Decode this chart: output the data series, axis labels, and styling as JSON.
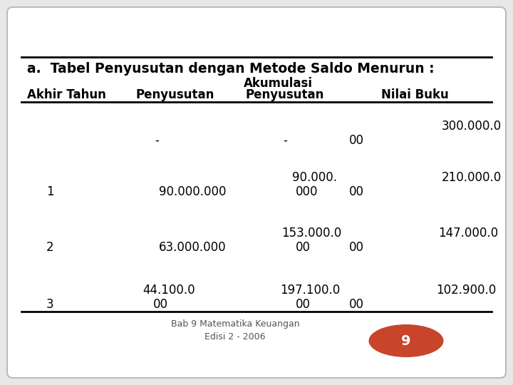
{
  "title": "a.  Tabel Penyusutan dengan Metode Saldo Menurun :",
  "header1": "Akhir Tahun",
  "header2": "Penyusutan",
  "header3a": "Akumulasi",
  "header3b": "Penyusutan",
  "header4": "Nilai Buku",
  "footer_text": "Bab 9 Matematika Keuangan\nEdisi 2 - 2006",
  "badge_text": "9",
  "badge_color": "#c8442a",
  "bg_color": "#e8e8e8",
  "row0": [
    "",
    "-",
    "-",
    "300.000.0",
    "00"
  ],
  "row1": [
    "1",
    "90.000.000",
    "000",
    "90.000.",
    "210.000.0",
    "00"
  ],
  "row2": [
    "2",
    "63.000.000",
    "00",
    "153.000.0",
    "147.000.0",
    "00"
  ],
  "row3": [
    "3",
    "44.100.0",
    "00",
    "197.100.0",
    "102.900.0",
    "00"
  ]
}
